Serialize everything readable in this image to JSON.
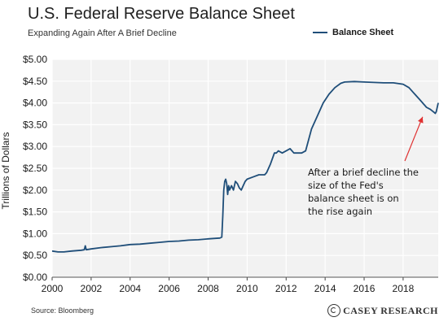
{
  "title": "U.S. Federal Reserve Balance Sheet",
  "subtitle": "Expanding Again After A Brief Decline",
  "legend": "Balance Sheet",
  "source": "Source: Bloomberg",
  "logo": "CASEY RESEARCH",
  "colors": {
    "line": "#1f4e79",
    "arrow": "#e03030",
    "plot_bg": "#f2f2f2",
    "grid": "#ffffff"
  },
  "chart_data": {
    "type": "line",
    "title": "U.S. Federal Reserve Balance Sheet",
    "subtitle": "Expanding Again After A Brief Decline",
    "xlabel": "",
    "ylabel": "Trillions of Dollars",
    "xlim": [
      2000,
      2019.8
    ],
    "ylim": [
      0,
      5
    ],
    "grid": true,
    "legend_position": "top-right",
    "x_tick_labels": [
      "2000",
      "2002",
      "2004",
      "2006",
      "2008",
      "2010",
      "2012",
      "2014",
      "2016",
      "2018"
    ],
    "y_tick_labels": [
      "$0.00",
      "$0.50",
      "$1.00",
      "$1.50",
      "$2.00",
      "$2.50",
      "$3.00",
      "$3.50",
      "$4.00",
      "$4.50",
      "$5.00"
    ],
    "series": [
      {
        "name": "Balance Sheet",
        "x": [
          2000.0,
          2000.3,
          2000.6,
          2001.0,
          2001.5,
          2001.65,
          2001.7,
          2001.75,
          2002.0,
          2002.5,
          2003.0,
          2003.5,
          2004.0,
          2004.5,
          2005.0,
          2005.5,
          2006.0,
          2006.5,
          2007.0,
          2007.5,
          2008.0,
          2008.3,
          2008.6,
          2008.7,
          2008.75,
          2008.8,
          2008.85,
          2008.9,
          2008.95,
          2009.0,
          2009.05,
          2009.1,
          2009.2,
          2009.3,
          2009.4,
          2009.5,
          2009.6,
          2009.7,
          2009.8,
          2009.9,
          2010.0,
          2010.3,
          2010.6,
          2010.9,
          2011.0,
          2011.2,
          2011.4,
          2011.5,
          2011.6,
          2011.8,
          2012.0,
          2012.2,
          2012.4,
          2012.6,
          2012.8,
          2013.0,
          2013.3,
          2013.6,
          2013.9,
          2014.2,
          2014.5,
          2014.8,
          2015.0,
          2015.5,
          2016.0,
          2016.5,
          2017.0,
          2017.5,
          2018.0,
          2018.3,
          2018.6,
          2018.9,
          2019.2,
          2019.4,
          2019.6,
          2019.65,
          2019.7,
          2019.8
        ],
        "values": [
          0.6,
          0.58,
          0.58,
          0.6,
          0.62,
          0.63,
          0.72,
          0.63,
          0.65,
          0.68,
          0.7,
          0.72,
          0.75,
          0.76,
          0.78,
          0.8,
          0.82,
          0.83,
          0.85,
          0.86,
          0.88,
          0.89,
          0.9,
          0.92,
          1.4,
          2.0,
          2.2,
          2.25,
          2.15,
          1.9,
          2.1,
          2.0,
          2.1,
          2.0,
          2.2,
          2.15,
          2.05,
          2.0,
          2.1,
          2.2,
          2.25,
          2.3,
          2.35,
          2.35,
          2.4,
          2.6,
          2.85,
          2.85,
          2.9,
          2.85,
          2.9,
          2.95,
          2.85,
          2.85,
          2.85,
          2.9,
          3.4,
          3.7,
          4.0,
          4.2,
          4.35,
          4.45,
          4.48,
          4.49,
          4.48,
          4.47,
          4.46,
          4.46,
          4.43,
          4.35,
          4.2,
          4.05,
          3.9,
          3.85,
          3.78,
          3.76,
          3.8,
          4.0
        ]
      }
    ],
    "annotations": [
      {
        "lines": [
          "After a brief decline the",
          "size of the Fed's",
          "balance sheet is on",
          "the rise again"
        ],
        "arrow_target": [
          2019.0,
          3.68
        ]
      }
    ]
  }
}
